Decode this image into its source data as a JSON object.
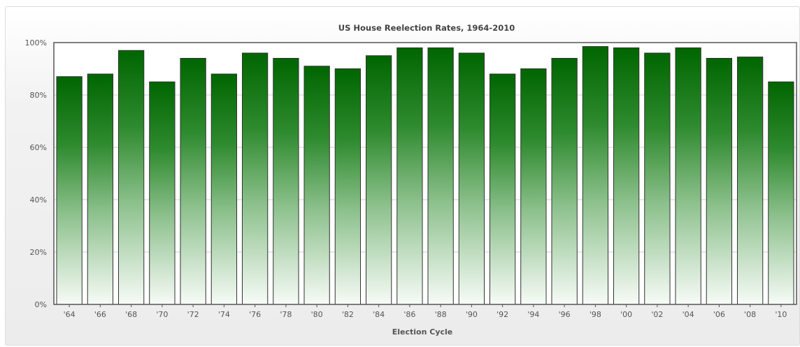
{
  "chart_data": {
    "type": "bar",
    "title": "US House Reelection Rates, 1964-2010",
    "xlabel": "Election Cycle",
    "ylabel": "",
    "categories": [
      "'64",
      "'66",
      "'68",
      "'70",
      "'72",
      "'74",
      "'76",
      "'78",
      "'80",
      "'82",
      "'84",
      "'86",
      "'88",
      "'90",
      "'92",
      "'94",
      "'96",
      "'98",
      "'00",
      "'02",
      "'04",
      "'06",
      "'08",
      "'10"
    ],
    "values": [
      87,
      88,
      97,
      85,
      94,
      88,
      96,
      94,
      91,
      90,
      95,
      98,
      98,
      96,
      88,
      90,
      94,
      98.5,
      98,
      96,
      98,
      94,
      94.5,
      85
    ],
    "ylim": [
      0,
      100
    ],
    "yticks": [
      0,
      20,
      40,
      60,
      80,
      100
    ],
    "ytick_labels": [
      "0%",
      "20%",
      "40%",
      "60%",
      "80%",
      "100%"
    ],
    "grid": true,
    "legend": "none",
    "colors": {
      "bar_top": "#006600",
      "bar_bottom": "#f7fbf7",
      "bar_border": "#333333"
    }
  }
}
